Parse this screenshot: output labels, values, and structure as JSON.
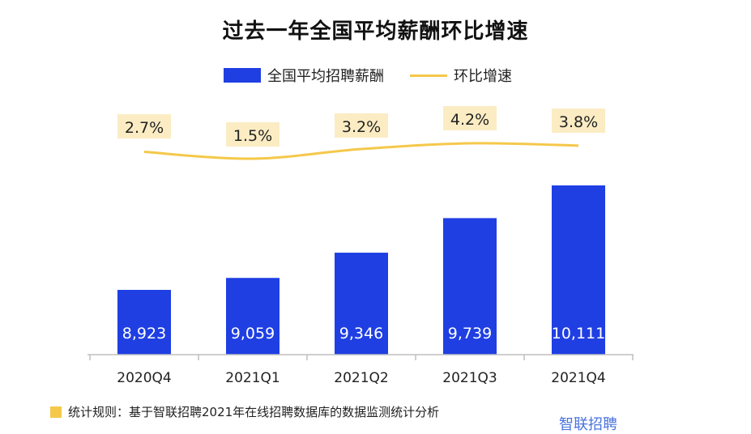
{
  "chart_data": {
    "type": "bar",
    "title": "过去一年全国平均薪酬环比增速",
    "categories": [
      "2020Q4",
      "2021Q1",
      "2021Q2",
      "2021Q3",
      "2021Q4"
    ],
    "series": [
      {
        "name": "全国平均招聘薪酬",
        "type": "bar",
        "values": [
          8923,
          9059,
          9346,
          9739,
          10111
        ],
        "labels": [
          "8,923",
          "9,059",
          "9,346",
          "9,739",
          "10,111"
        ],
        "color": "#1f3fe3"
      },
      {
        "name": "环比增速",
        "type": "line",
        "values": [
          2.7,
          1.5,
          3.2,
          4.2,
          3.8
        ],
        "labels": [
          "2.7%",
          "1.5%",
          "3.2%",
          "4.2%",
          "3.8%"
        ],
        "color": "#f5c84a"
      }
    ],
    "grid": false,
    "legend_position": "top-center"
  },
  "footnote": "统计规则：基于智联招聘2021年在线招聘数据库的数据监测统计分析",
  "watermark": "智联招聘"
}
